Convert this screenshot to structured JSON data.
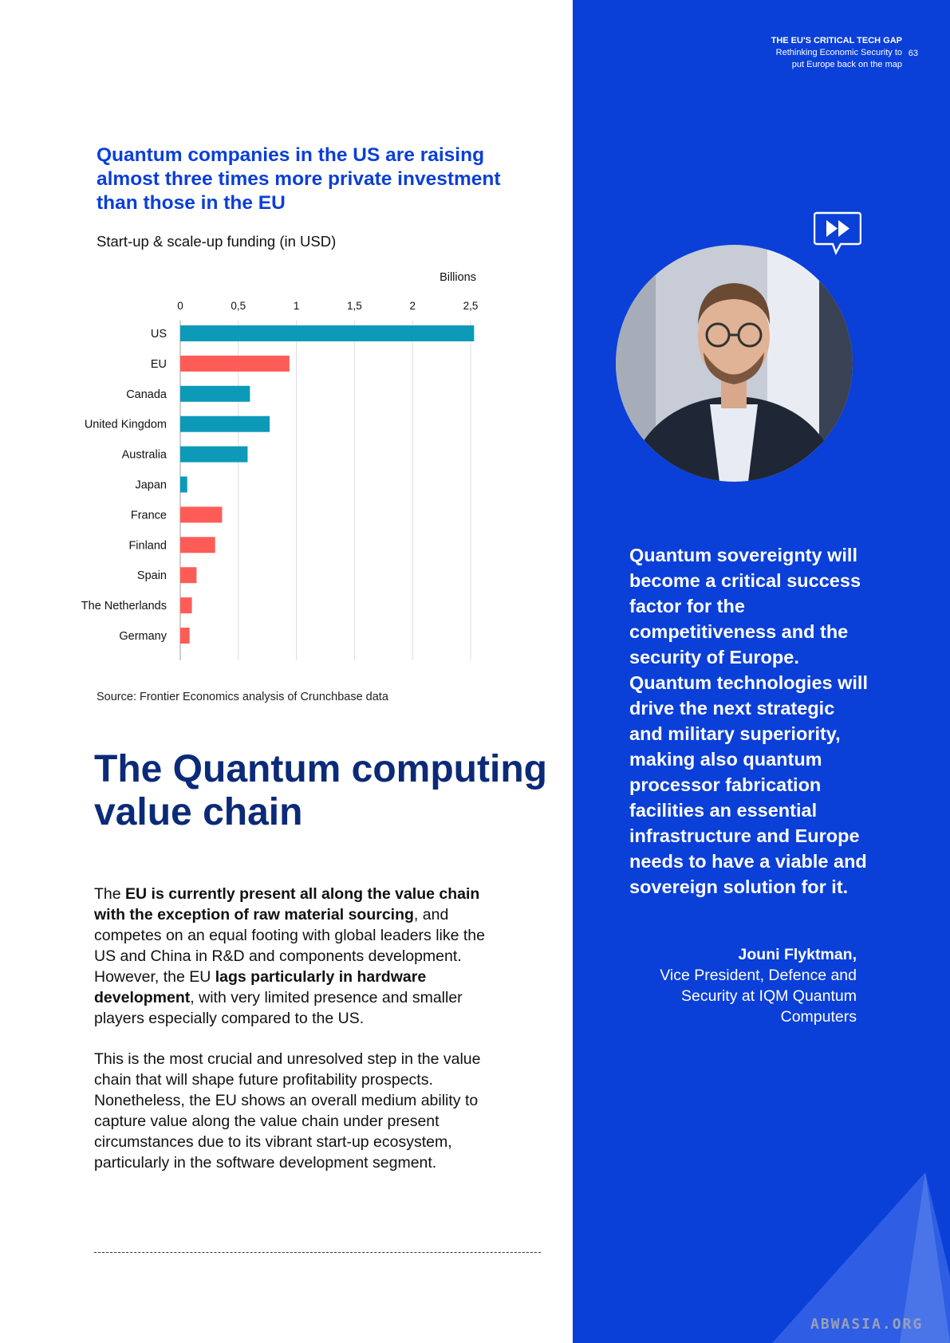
{
  "header": {
    "report_title": "THE EU'S CRITICAL TECH GAP",
    "report_subtitle_1": "Rethinking Economic Security to",
    "report_subtitle_2": "put Europe back on the map",
    "page_number": "63"
  },
  "chart_data": {
    "type": "bar",
    "orientation": "horizontal",
    "title": "Quantum companies in the US are raising almost three times more private investment than those in the EU",
    "subtitle": "Start-up & scale-up funding (in USD)",
    "unit_label": "Billions",
    "xlim": [
      0,
      2.5
    ],
    "x_ticks": [
      "0",
      "0,5",
      "1",
      "1,5",
      "2",
      "2,5"
    ],
    "grid": true,
    "categories": [
      "US",
      "EU",
      "Canada",
      "United Kingdom",
      "Australia",
      "Japan",
      "France",
      "Finland",
      "Spain",
      "The Netherlands",
      "Germany"
    ],
    "values": [
      2.53,
      0.94,
      0.6,
      0.77,
      0.58,
      0.06,
      0.36,
      0.3,
      0.14,
      0.1,
      0.08
    ],
    "colors": [
      "#0c9ab8",
      "#ff5c57",
      "#0c9ab8",
      "#0c9ab8",
      "#0c9ab8",
      "#0c9ab8",
      "#ff5c57",
      "#ff5c57",
      "#ff5c57",
      "#ff5c57",
      "#ff5c57"
    ],
    "source": "Source: Frontier Economics analysis of Crunchbase data"
  },
  "section": {
    "heading": "The Quantum computing value chain",
    "para1": [
      {
        "text": "The ",
        "bold": false
      },
      {
        "text": "EU is currently present all along the value chain with the exception of raw material sourcing",
        "bold": true
      },
      {
        "text": ", and competes on an equal footing with global leaders like the US and China in R&D and components development. However, the EU ",
        "bold": false
      },
      {
        "text": "lags particularly in hardware development",
        "bold": true
      },
      {
        "text": ", with very limited presence and smaller players especially compared to the US.",
        "bold": false
      }
    ],
    "para2": "This is the most crucial and unresolved step in the value chain that will shape future profitability prospects. Nonetheless, the EU shows an overall medium ability to capture value along the value chain under present circumstances due to its vibrant start-up ecosystem, particularly in the software development segment."
  },
  "quote": {
    "text": "Quantum sovereignty will become a critical success factor for the competitiveness and the security of Europe. Quantum technologies will drive the next strategic and military superiority, making also quantum processor fabrication facilities an essential infrastructure and Europe needs to have a viable and sovereign solution for it.",
    "author": "Jouni Flyktman,",
    "author_role": "Vice President, Defence and Security at IQM Quantum Computers"
  },
  "watermark": "ABWASIA.ORG",
  "colors": {
    "brand_blue": "#0a3fd8",
    "heading_navy": "#0b2a78",
    "teal": "#0c9ab8",
    "coral": "#ff5c57"
  }
}
